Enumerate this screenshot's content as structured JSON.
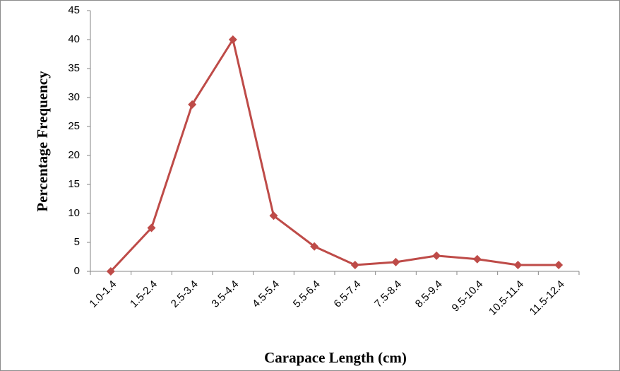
{
  "chart_data": {
    "type": "line",
    "xlabel": "Carapace Length (cm)",
    "ylabel": "Percentage Frequency",
    "categories": [
      "1.0-1.4",
      "1.5-2.4",
      "2.5-3.4",
      "3.5-4.4",
      "4.5-5.4",
      "5.5-6.4",
      "6.5-7.4",
      "7.5-8.4",
      "8.5-9.4",
      "9.5-10.4",
      "10.5-11.4",
      "11.5-12.4"
    ],
    "series": [
      {
        "color": "#be4b48",
        "values": [
          0,
          7.5,
          28.8,
          40,
          9.6,
          4.3,
          1.1,
          1.6,
          2.7,
          2.1,
          1.1,
          1.1
        ]
      }
    ],
    "ylim": [
      0,
      45
    ],
    "yticks": [
      0,
      5,
      10,
      15,
      20,
      25,
      30,
      35,
      40,
      45
    ]
  }
}
